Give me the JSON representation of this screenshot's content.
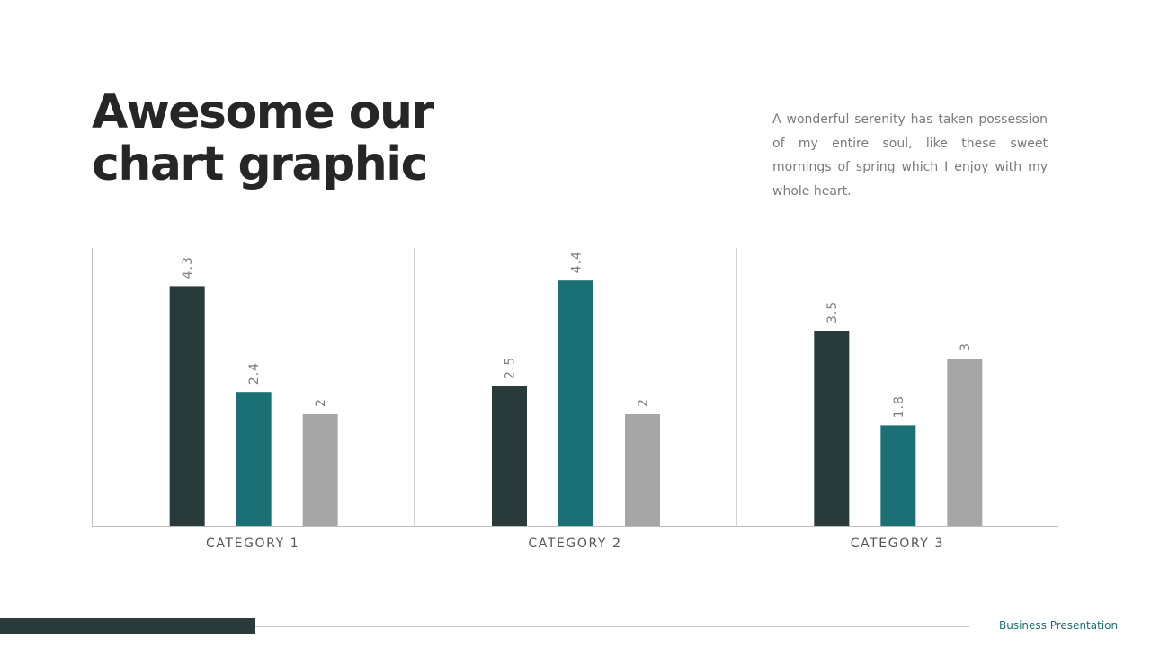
{
  "slide": {
    "title_line1": "Awesome our",
    "title_line2": "chart graphic",
    "description": "A wonderful serenity has taken possession of my entire soul, like these sweet mornings of spring which I enjoy with my whole heart."
  },
  "footer": {
    "label": "Business Presentation"
  },
  "colors": {
    "series1": "#283b3a",
    "series2": "#1a7075",
    "series3": "#a6a6a6",
    "axis": "#bfbfbf",
    "label_text": "#7f7f7f",
    "category_text": "#555555"
  },
  "chart_data": {
    "type": "bar",
    "categories": [
      "CATEGORY 1",
      "CATEGORY 2",
      "CATEGORY 3"
    ],
    "series": [
      {
        "values": [
          4.3,
          2.5,
          3.5
        ],
        "color": "#283b3a"
      },
      {
        "values": [
          2.4,
          4.4,
          1.8
        ],
        "color": "#1a7075"
      },
      {
        "values": [
          2,
          2,
          3
        ],
        "color": "#a6a6a6"
      }
    ],
    "ylim": [
      0,
      5
    ],
    "data_labels": true,
    "data_label_orientation": "vertical",
    "grid": false,
    "legend": "none"
  }
}
